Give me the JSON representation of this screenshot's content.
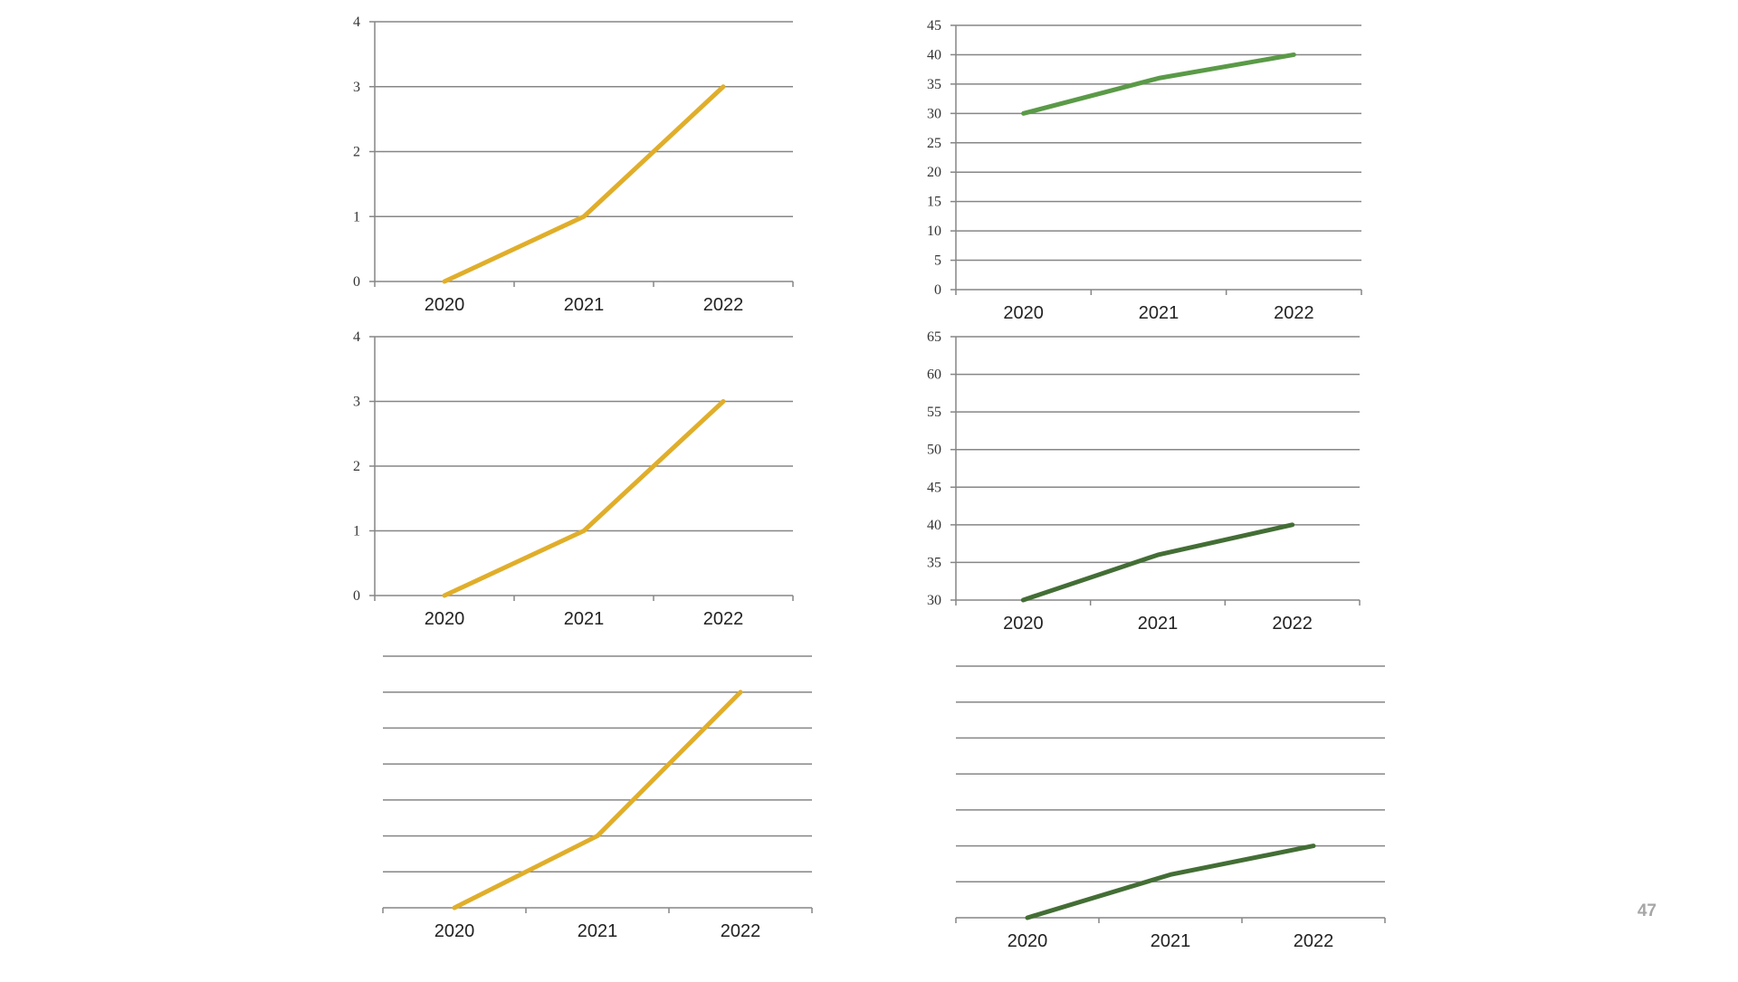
{
  "slide": {
    "page_number": "47"
  },
  "chart_data": [
    {
      "type": "line",
      "categories": [
        "2020",
        "2021",
        "2022"
      ],
      "series": [
        {
          "values": [
            0,
            1,
            3
          ],
          "color": "#E0AE2A"
        }
      ],
      "ylim": [
        0,
        4
      ],
      "yticks": [
        "0",
        "1",
        "2",
        "3",
        "4"
      ],
      "y_labels_visible": true,
      "grid": true
    },
    {
      "type": "line",
      "categories": [
        "2020",
        "2021",
        "2022"
      ],
      "series": [
        {
          "values": [
            30,
            36,
            40
          ],
          "color": "#5A9A47"
        }
      ],
      "ylim": [
        0,
        45
      ],
      "yticks": [
        "0",
        "5",
        "10",
        "15",
        "20",
        "25",
        "30",
        "35",
        "40",
        "45"
      ],
      "y_labels_visible": true,
      "grid": true
    },
    {
      "type": "line",
      "categories": [
        "2020",
        "2021",
        "2022"
      ],
      "series": [
        {
          "values": [
            0,
            1,
            3
          ],
          "color": "#E0AE2A"
        }
      ],
      "ylim": [
        0,
        4
      ],
      "yticks": [
        "0",
        "1",
        "2",
        "3",
        "4"
      ],
      "y_labels_visible": true,
      "grid": true
    },
    {
      "type": "line",
      "categories": [
        "2020",
        "2021",
        "2022"
      ],
      "series": [
        {
          "values": [
            30,
            36,
            40
          ],
          "color": "#436E35"
        }
      ],
      "ylim": [
        30,
        65
      ],
      "yticks": [
        "30",
        "35",
        "40",
        "45",
        "50",
        "55",
        "60",
        "65"
      ],
      "y_labels_visible": true,
      "grid": true
    },
    {
      "type": "line",
      "categories": [
        "2020",
        "2021",
        "2022"
      ],
      "series": [
        {
          "values": [
            0,
            1,
            3
          ],
          "color": "#E0AE2A"
        }
      ],
      "ylim": [
        0,
        3.5
      ],
      "grid_step": 0.5,
      "y_labels_visible": false,
      "grid": true
    },
    {
      "type": "line",
      "categories": [
        "2020",
        "2021",
        "2022"
      ],
      "series": [
        {
          "values": [
            30,
            36,
            40
          ],
          "color": "#436E35"
        }
      ],
      "ylim": [
        30,
        65
      ],
      "grid_step": 5,
      "y_labels_visible": false,
      "grid": true
    }
  ]
}
